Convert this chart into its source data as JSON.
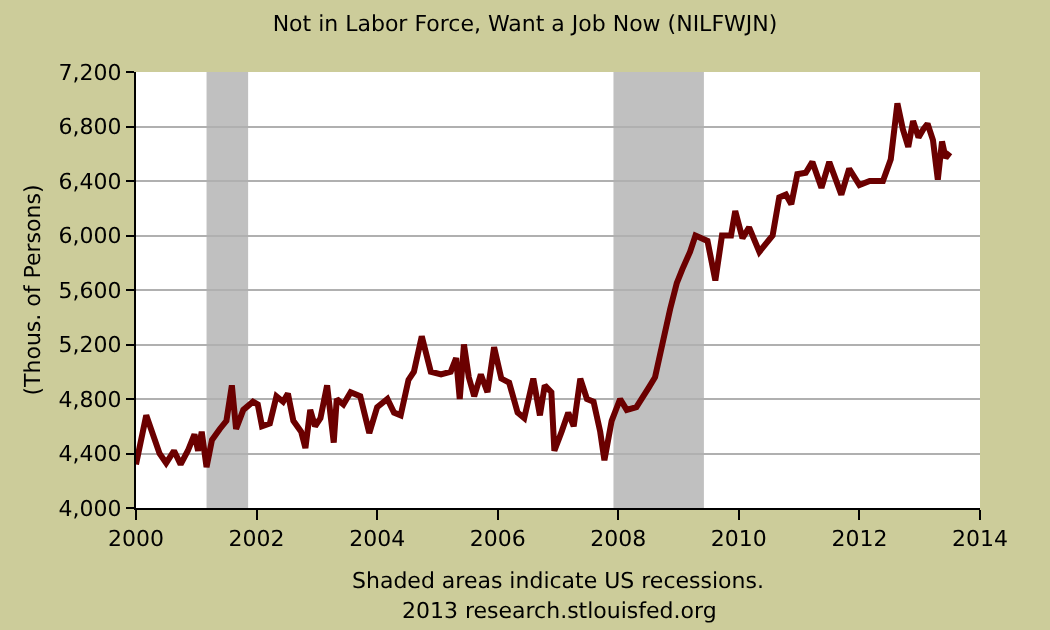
{
  "chart_data": {
    "type": "line",
    "title": "Not in Labor Force, Want a Job Now (NILFWJN)",
    "ylabel": "(Thous. of Persons)",
    "annotations": [
      "Shaded areas indicate US recessions.",
      "2013 research.stlouisfed.org"
    ],
    "x": [
      2000.0,
      2000.17,
      2000.39,
      2000.5,
      2000.63,
      2000.74,
      2000.86,
      2000.97,
      2001.03,
      2001.09,
      2001.17,
      2001.26,
      2001.39,
      2001.5,
      2001.59,
      2001.66,
      2001.78,
      2001.94,
      2002.02,
      2002.09,
      2002.22,
      2002.33,
      2002.44,
      2002.52,
      2002.61,
      2002.74,
      2002.81,
      2002.89,
      2002.97,
      2003.06,
      2003.17,
      2003.28,
      2003.33,
      2003.44,
      2003.56,
      2003.72,
      2003.87,
      2004.0,
      2004.17,
      2004.28,
      2004.39,
      2004.52,
      2004.61,
      2004.74,
      2004.89,
      2005.06,
      2005.22,
      2005.31,
      2005.37,
      2005.44,
      2005.52,
      2005.61,
      2005.72,
      2005.83,
      2005.94,
      2006.06,
      2006.19,
      2006.33,
      2006.44,
      2006.59,
      2006.7,
      2006.78,
      2006.89,
      2006.94,
      2007.06,
      2007.17,
      2007.26,
      2007.37,
      2007.48,
      2007.59,
      2007.7,
      2007.77,
      2007.89,
      2008.03,
      2008.14,
      2008.3,
      2008.5,
      2008.61,
      2008.72,
      2008.86,
      2008.97,
      2009.06,
      2009.19,
      2009.28,
      2009.48,
      2009.61,
      2009.72,
      2009.87,
      2009.94,
      2010.06,
      2010.17,
      2010.34,
      2010.56,
      2010.67,
      2010.78,
      2010.87,
      2010.97,
      2011.11,
      2011.22,
      2011.37,
      2011.5,
      2011.7,
      2011.83,
      2012.0,
      2012.17,
      2012.39,
      2012.52,
      2012.63,
      2012.72,
      2012.81,
      2012.89,
      2012.98,
      2013.06,
      2013.13,
      2013.22,
      2013.3,
      2013.37,
      2013.43,
      2013.5
    ],
    "series": [
      {
        "color": "#6b0000",
        "values": [
          4320,
          4680,
          4400,
          4330,
          4420,
          4320,
          4420,
          4540,
          4420,
          4560,
          4300,
          4500,
          4580,
          4640,
          4900,
          4580,
          4720,
          4780,
          4760,
          4600,
          4620,
          4820,
          4780,
          4840,
          4640,
          4560,
          4440,
          4720,
          4600,
          4660,
          4900,
          4480,
          4800,
          4760,
          4850,
          4820,
          4550,
          4740,
          4800,
          4700,
          4680,
          4940,
          5000,
          5260,
          5000,
          4980,
          5000,
          5100,
          4800,
          5200,
          4960,
          4820,
          4980,
          4850,
          5180,
          4950,
          4920,
          4700,
          4660,
          4950,
          4680,
          4900,
          4850,
          4420,
          4560,
          4700,
          4600,
          4950,
          4800,
          4780,
          4560,
          4350,
          4640,
          4800,
          4720,
          4740,
          4880,
          4960,
          5180,
          5460,
          5650,
          5750,
          5880,
          6000,
          5960,
          5670,
          6000,
          6000,
          6180,
          5980,
          6060,
          5880,
          6000,
          6280,
          6300,
          6230,
          6450,
          6460,
          6540,
          6350,
          6540,
          6300,
          6490,
          6370,
          6400,
          6400,
          6560,
          6970,
          6780,
          6650,
          6840,
          6720,
          6780,
          6820,
          6700,
          6410,
          6690,
          6570,
          6610
        ]
      }
    ],
    "xlim": [
      2000,
      2014
    ],
    "xticks": [
      2000,
      2002,
      2004,
      2006,
      2008,
      2010,
      2012,
      2014
    ],
    "ylim": [
      4000,
      7200
    ],
    "yticks": [
      {
        "value": 4000,
        "label": "4,000"
      },
      {
        "value": 4400,
        "label": "4,400"
      },
      {
        "value": 4800,
        "label": "4,800"
      },
      {
        "value": 5200,
        "label": "5,200"
      },
      {
        "value": 5600,
        "label": "5,600"
      },
      {
        "value": 6000,
        "label": "6,000"
      },
      {
        "value": 6400,
        "label": "6,400"
      },
      {
        "value": 6800,
        "label": "6,800"
      },
      {
        "value": 7200,
        "label": "7,200"
      }
    ],
    "bands": [
      {
        "axis": "x",
        "from": 2001.17,
        "to": 2001.86,
        "color": "#c0c0c0"
      },
      {
        "axis": "x",
        "from": 2007.92,
        "to": 2009.42,
        "color": "#c0c0c0"
      }
    ],
    "grid": "y",
    "marker": "none",
    "line_style": "solid"
  }
}
